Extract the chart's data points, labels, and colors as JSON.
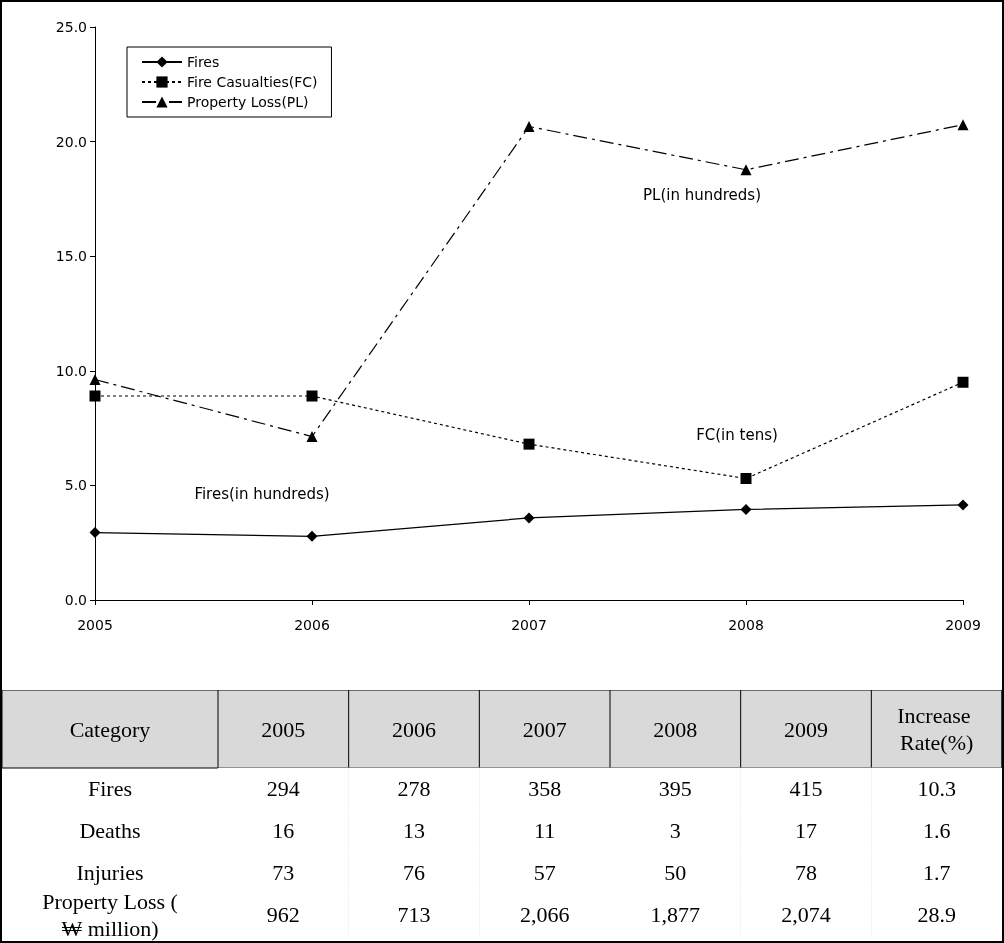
{
  "chart_data": [
    {
      "type": "line",
      "categories": [
        "2005",
        "2006",
        "2007",
        "2008",
        "2009"
      ],
      "series": [
        {
          "name": "Fires",
          "color": "#000000",
          "marker": "diamond",
          "line_style": "solid",
          "values": [
            2.94,
            2.78,
            3.58,
            3.95,
            4.15
          ]
        },
        {
          "name": "Fire Casualties(FC)",
          "color": "#000000",
          "marker": "square",
          "line_style": "dotted",
          "values": [
            8.9,
            8.9,
            6.8,
            5.3,
            9.5
          ]
        },
        {
          "name": "Property Loss(PL)",
          "color": "#000000",
          "marker": "triangle",
          "line_style": "dashed",
          "values": [
            9.62,
            7.13,
            20.66,
            18.77,
            20.74
          ]
        }
      ],
      "ylim": [
        0,
        25
      ],
      "yticks": [
        {
          "value": 0,
          "label": "0.0"
        },
        {
          "value": 5,
          "label": "5.0"
        },
        {
          "value": 10,
          "label": "10.0"
        },
        {
          "value": 15,
          "label": "15.0"
        },
        {
          "value": 20,
          "label": "20.0"
        },
        {
          "value": 25,
          "label": "25.0"
        }
      ],
      "grid": false,
      "legend": "top left",
      "annotations": [
        "PL(in hundreds)",
        "FC(in tens)",
        "Fires(in hundreds)"
      ]
    },
    {
      "type": "heatmap",
      "ylabel": "Category",
      "categories": [
        "2005",
        "2006",
        "2007",
        "2008",
        "2009",
        "Increase Rate(%)"
      ],
      "cells": [
        [
          null,
          null,
          null,
          null,
          null,
          null
        ],
        [
          null,
          null,
          null,
          null,
          null,
          null
        ],
        [
          null,
          null,
          null,
          null,
          null,
          null
        ],
        [
          null,
          null,
          null,
          null,
          null,
          null
        ]
      ],
      "cell_labels": [
        [
          "294",
          "278",
          "358",
          "395",
          "415",
          "10.3"
        ],
        [
          "16",
          "13",
          "11",
          "3",
          "17",
          "1.6"
        ],
        [
          "73",
          "76",
          "57",
          "50",
          "78",
          "1.7"
        ],
        [
          "962",
          "713",
          "2,066",
          "1,877",
          "2,074",
          "28.9"
        ]
      ],
      "y_categories": [
        "Fires",
        "Deaths",
        "Injuries",
        "Property Loss (₩ million)"
      ]
    }
  ]
}
